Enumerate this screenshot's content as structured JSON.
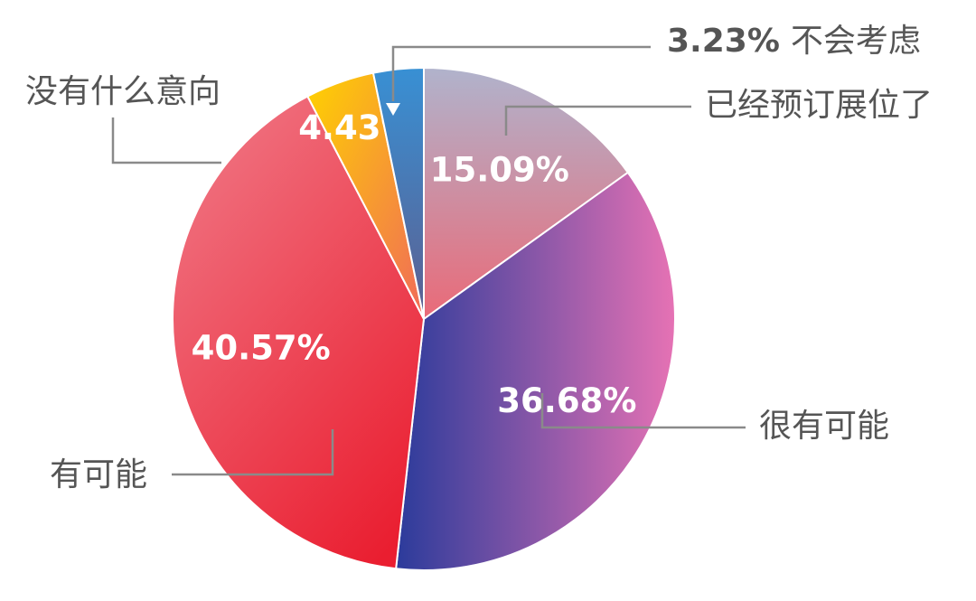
{
  "chart_data": {
    "type": "pie",
    "categories": [
      "已经预订展位了",
      "很有可能",
      "有可能",
      "没有什么意向",
      "不会考虑"
    ],
    "values": [
      15.09,
      36.68,
      40.57,
      4.43,
      3.23
    ],
    "value_labels": [
      "15.09%",
      "36.68%",
      "40.57%",
      "4.43%",
      "3.23%"
    ],
    "colors": [
      [
        "#b0b3cc",
        "#ea6a78"
      ],
      [
        "#2b3b9b",
        "#e672b4"
      ],
      [
        "#f07482",
        "#ea1e30"
      ],
      [
        "#ffd200",
        "#f06a5a"
      ],
      [
        "#3890d4",
        "#5d5f90"
      ]
    ]
  }
}
